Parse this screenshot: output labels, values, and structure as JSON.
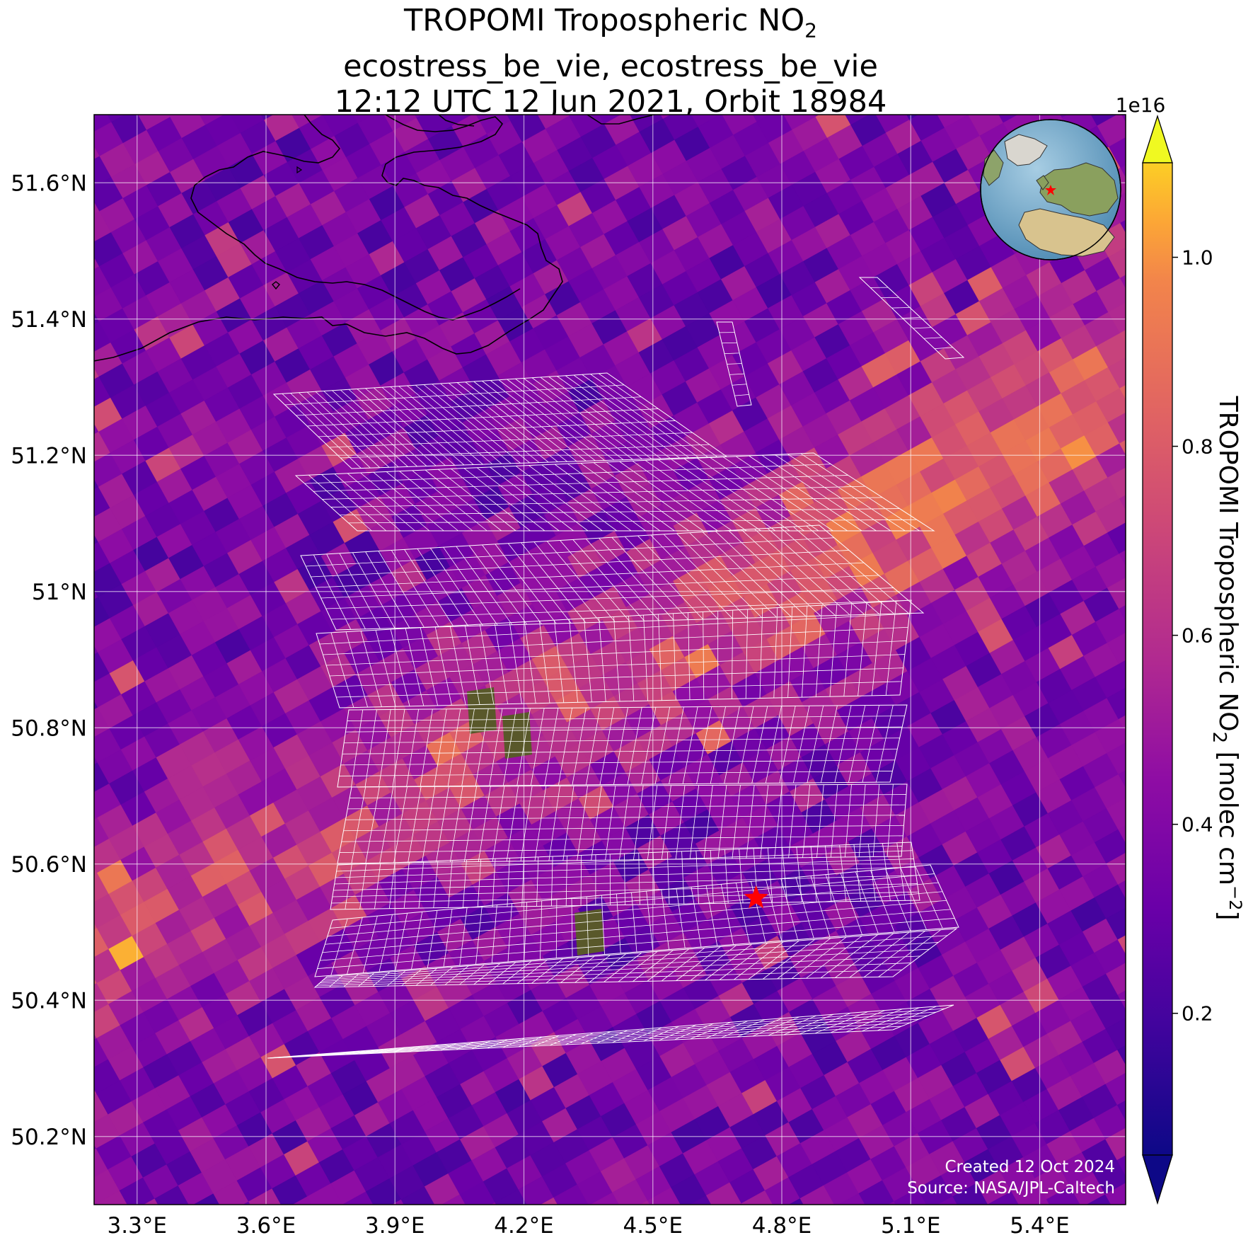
{
  "title": {
    "line1_main": "TROPOMI Tropospheric NO",
    "line1_sub": "2",
    "line2": "ecostress_be_vie, ecostress_be_vie",
    "line3": "12:12 UTC 12 Jun 2021, Orbit 18984"
  },
  "map": {
    "lon_range": [
      3.2,
      5.6
    ],
    "lat_range": [
      50.1,
      51.7
    ],
    "lon_ticks": [
      3.3,
      3.6,
      3.9,
      4.2,
      4.5,
      4.8,
      5.1,
      5.4
    ],
    "lon_tick_labels": [
      "3.3°E",
      "3.6°E",
      "3.9°E",
      "4.2°E",
      "4.5°E",
      "4.8°E",
      "5.1°E",
      "5.4°E"
    ],
    "lat_ticks": [
      50.2,
      50.4,
      50.6,
      50.8,
      51.0,
      51.2,
      51.4,
      51.6
    ],
    "lat_tick_labels": [
      "50.2°N",
      "50.4°N",
      "50.6°N",
      "50.8°N",
      "51°N",
      "51.2°N",
      "51.4°N",
      "51.6°N"
    ],
    "gridlines": true,
    "target_marker": {
      "lon": 4.74,
      "lat": 50.55,
      "color": "#ff0000",
      "symbol": "star"
    },
    "colormap": "plasma",
    "inset_globe": {
      "placement": "top-right",
      "marker_color": "#ff0000"
    }
  },
  "colorbar": {
    "scale_label": "1e16",
    "label_main": "TROPOMI Tropospheric NO",
    "label_sub": "2",
    "label_units_main": " [molec cm",
    "label_units_sup": "−2",
    "label_units_end": "]",
    "range": [
      0.05,
      1.1
    ],
    "ticks": [
      0.2,
      0.4,
      0.6,
      0.8,
      1.0
    ],
    "tick_labels": [
      "0.2",
      "0.4",
      "0.6",
      "0.8",
      "1.0"
    ]
  },
  "credits": {
    "created": "Created 12 Oct 2024",
    "source": "Source: NASA/JPL-Caltech"
  }
}
